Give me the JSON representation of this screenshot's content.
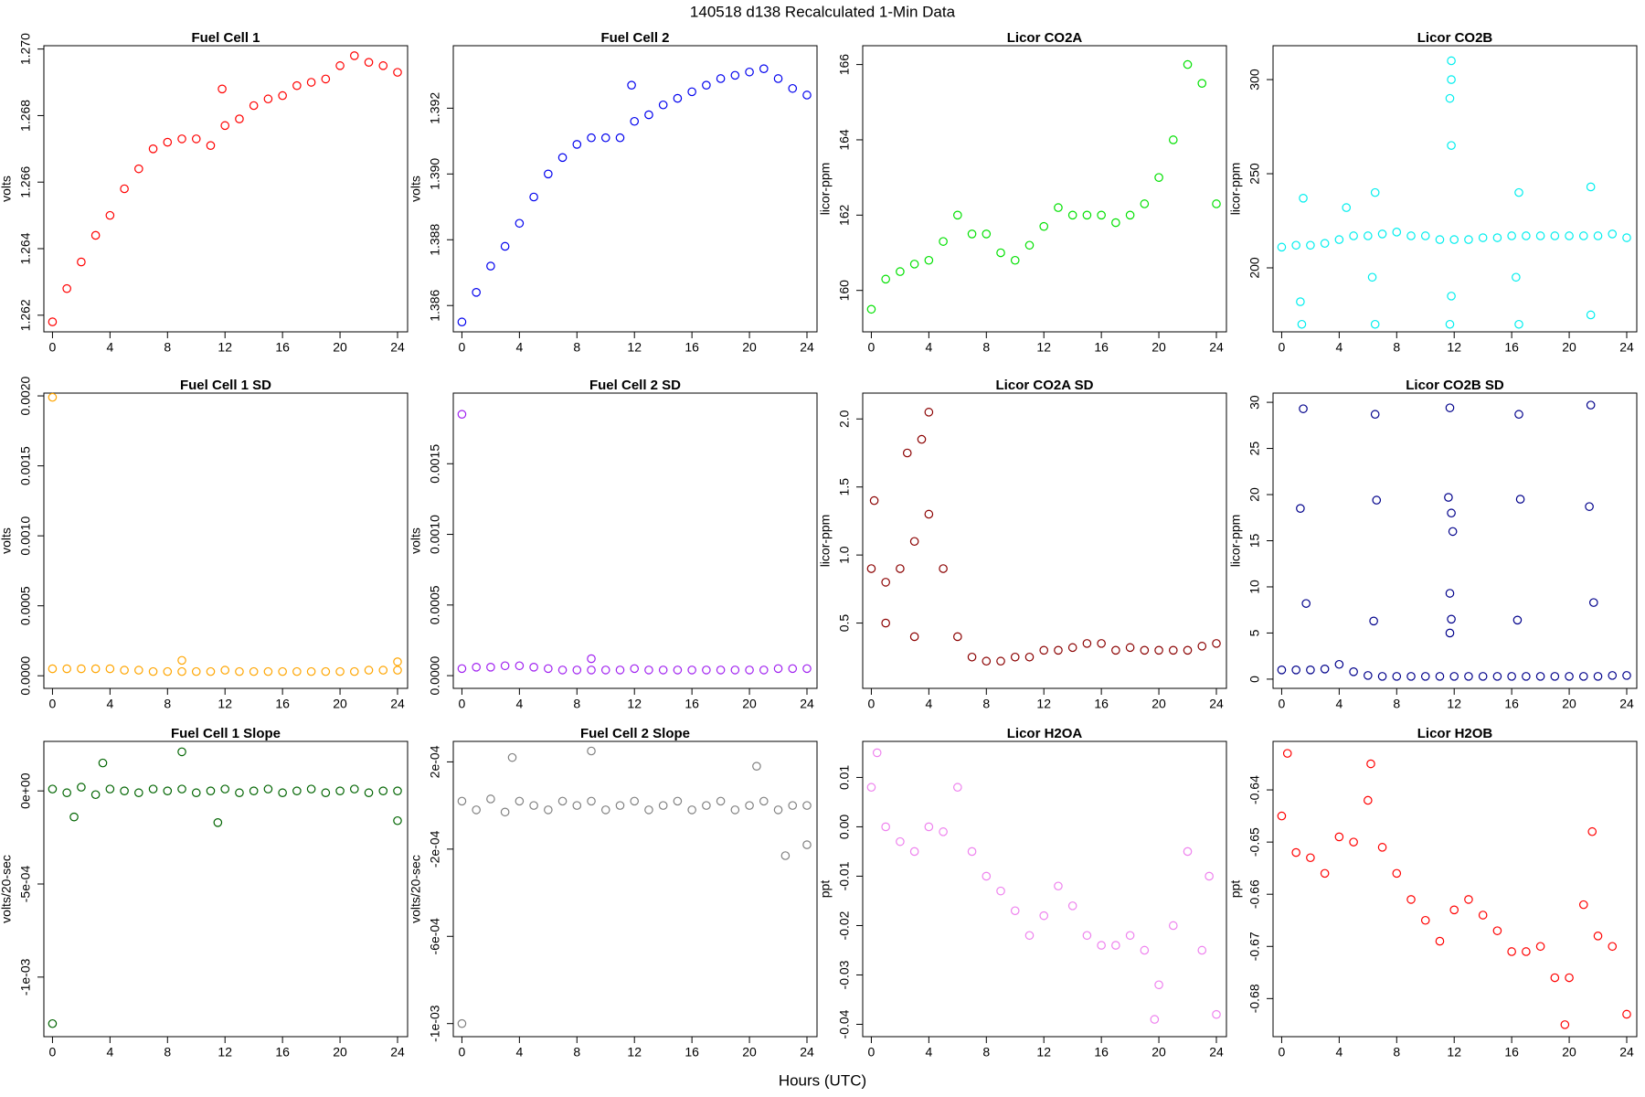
{
  "title": "140518   d138   Recalculated 1-Min Data",
  "xlabel": "Hours (UTC)",
  "chart_data": [
    {
      "type": "scatter",
      "title": "Fuel Cell 1",
      "ylabel": "volts",
      "color": "#ff0000",
      "x": [
        0,
        1,
        2,
        3,
        4,
        5,
        6,
        7,
        8,
        9,
        10,
        11,
        12,
        13,
        14,
        15,
        16,
        17,
        18,
        19,
        20,
        21,
        22,
        23,
        24,
        11.8
      ],
      "values": [
        1.2618,
        1.2628,
        1.2636,
        1.2644,
        1.265,
        1.2658,
        1.2664,
        1.267,
        1.2672,
        1.2673,
        1.2673,
        1.2671,
        1.2677,
        1.2679,
        1.2683,
        1.2685,
        1.2686,
        1.2689,
        1.269,
        1.2691,
        1.2695,
        1.2698,
        1.2696,
        1.2695,
        1.2693,
        1.2688
      ],
      "xlim": [
        -0.6,
        24.7
      ],
      "xticks": [
        0,
        4,
        8,
        12,
        16,
        20,
        24
      ],
      "ylim": [
        1.2615,
        1.2701
      ],
      "yticks": [
        1.262,
        1.264,
        1.266,
        1.268,
        {
          "value": 1.27,
          "label": "1.270"
        }
      ]
    },
    {
      "type": "scatter",
      "title": "Fuel Cell 2",
      "ylabel": "volts",
      "color": "#0000ee",
      "x": [
        0,
        1,
        2,
        3,
        4,
        5,
        6,
        7,
        8,
        9,
        10,
        11,
        12,
        13,
        14,
        15,
        16,
        17,
        18,
        19,
        20,
        21,
        22,
        23,
        24,
        11.8
      ],
      "values": [
        1.3855,
        1.3864,
        1.3872,
        1.3878,
        1.3885,
        1.3893,
        1.39,
        1.3905,
        1.3909,
        1.3911,
        1.3911,
        1.3911,
        1.3916,
        1.3918,
        1.3921,
        1.3923,
        1.3925,
        1.3927,
        1.3929,
        1.393,
        1.3931,
        1.3932,
        1.3929,
        1.3926,
        1.3924,
        1.3927
      ],
      "xlim": [
        -0.6,
        24.7
      ],
      "xticks": [
        0,
        4,
        8,
        12,
        16,
        20,
        24
      ],
      "ylim": [
        1.3852,
        1.3939
      ],
      "yticks": [
        1.386,
        1.388,
        {
          "value": 1.39,
          "label": "1.390"
        },
        1.392
      ]
    },
    {
      "type": "scatter",
      "title": "Licor CO2A",
      "ylabel": "licor-ppm",
      "color": "#00e000",
      "x": [
        0,
        1,
        2,
        3,
        4,
        5,
        6,
        7,
        8,
        9,
        10,
        11,
        12,
        13,
        14,
        15,
        16,
        17,
        18,
        19,
        20,
        21,
        22,
        23,
        24
      ],
      "values": [
        159.5,
        160.3,
        160.5,
        160.7,
        160.8,
        161.3,
        162.0,
        161.5,
        161.5,
        161.0,
        160.8,
        161.2,
        161.7,
        162.2,
        162.0,
        162.0,
        162.0,
        161.8,
        162.0,
        162.3,
        163.0,
        164.0,
        166.0,
        165.5,
        162.3
      ],
      "xlim": [
        -0.6,
        24.7
      ],
      "xticks": [
        0,
        4,
        8,
        12,
        16,
        20,
        24
      ],
      "ylim": [
        158.9,
        166.5
      ],
      "yticks": [
        160,
        162,
        164,
        166
      ]
    },
    {
      "type": "scatter",
      "title": "Licor CO2B",
      "ylabel": "licor-ppm",
      "color": "#00eeee",
      "x": [
        0,
        1,
        2,
        3,
        4,
        5,
        6,
        7,
        8,
        9,
        10,
        11,
        12,
        13,
        14,
        15,
        16,
        17,
        18,
        19,
        20,
        21,
        22,
        23,
        24,
        1.5,
        1.4,
        11.8,
        11.8,
        11.7,
        11.8,
        11.8,
        6.5,
        6.5,
        16.5,
        16.5,
        21.5,
        21.5,
        11.7,
        1.3,
        16.3,
        6.3,
        4.5
      ],
      "values": [
        211,
        212,
        212,
        213,
        215,
        217,
        217,
        218,
        219,
        217,
        217,
        215,
        215,
        215,
        216,
        216,
        217,
        217,
        217,
        217,
        217,
        217,
        217,
        218,
        216,
        237,
        170,
        310,
        300,
        290,
        265,
        185,
        240,
        170,
        240,
        170,
        243,
        175,
        170,
        182,
        195,
        195,
        232
      ],
      "xlim": [
        -0.6,
        24.7
      ],
      "xticks": [
        0,
        4,
        8,
        12,
        16,
        20,
        24
      ],
      "ylim": [
        166,
        318
      ],
      "yticks": [
        200,
        250,
        300
      ]
    },
    {
      "type": "scatter",
      "title": "Fuel Cell 1 SD",
      "ylabel": "volts",
      "color": "#ffa500",
      "x": [
        0,
        1,
        2,
        3,
        4,
        5,
        6,
        7,
        8,
        9,
        10,
        11,
        12,
        13,
        14,
        15,
        16,
        17,
        18,
        19,
        20,
        21,
        22,
        23,
        24,
        0,
        9,
        24
      ],
      "values": [
        5e-05,
        5e-05,
        5e-05,
        5e-05,
        5e-05,
        4e-05,
        4e-05,
        3e-05,
        3e-05,
        3e-05,
        3e-05,
        3e-05,
        4e-05,
        3e-05,
        3e-05,
        3e-05,
        3e-05,
        3e-05,
        3e-05,
        3e-05,
        3e-05,
        3e-05,
        4e-05,
        4e-05,
        4e-05,
        0.00199,
        0.00011,
        0.0001
      ],
      "xlim": [
        -0.6,
        24.7
      ],
      "xticks": [
        0,
        4,
        8,
        12,
        16,
        20,
        24
      ],
      "ylim": [
        -9e-05,
        0.00202
      ],
      "yticks": [
        {
          "value": 0,
          "label": "0.0000"
        },
        0.0005,
        {
          "value": 0.001,
          "label": "0.0010"
        },
        0.0015,
        {
          "value": 0.002,
          "label": "0.0020"
        }
      ]
    },
    {
      "type": "scatter",
      "title": "Fuel Cell 2 SD",
      "ylabel": "volts",
      "color": "#a020f0",
      "x": [
        0,
        1,
        2,
        3,
        4,
        5,
        6,
        7,
        8,
        9,
        10,
        11,
        12,
        13,
        14,
        15,
        16,
        17,
        18,
        19,
        20,
        21,
        22,
        23,
        24,
        0,
        9
      ],
      "values": [
        5e-05,
        6e-05,
        6e-05,
        7e-05,
        7e-05,
        6e-05,
        5e-05,
        4e-05,
        4e-05,
        4e-05,
        4e-05,
        4e-05,
        5e-05,
        4e-05,
        4e-05,
        4e-05,
        4e-05,
        4e-05,
        4e-05,
        4e-05,
        4e-05,
        4e-05,
        5e-05,
        5e-05,
        5e-05,
        0.00185,
        0.00012
      ],
      "xlim": [
        -0.6,
        24.7
      ],
      "xticks": [
        0,
        4,
        8,
        12,
        16,
        20,
        24
      ],
      "ylim": [
        -9e-05,
        0.002
      ],
      "yticks": [
        {
          "value": 0,
          "label": "0.0000"
        },
        0.0005,
        {
          "value": 0.001,
          "label": "0.0010"
        },
        0.0015
      ]
    },
    {
      "type": "scatter",
      "title": "Licor CO2A SD",
      "ylabel": "licor-ppm",
      "color": "#8b0000",
      "x": [
        0,
        1,
        2,
        3,
        4,
        5,
        6,
        7,
        8,
        9,
        10,
        11,
        12,
        13,
        14,
        15,
        16,
        17,
        18,
        19,
        20,
        21,
        22,
        23,
        24,
        4,
        3.5,
        2.5,
        0.2,
        1,
        3
      ],
      "values": [
        0.9,
        0.8,
        0.9,
        1.1,
        1.3,
        0.9,
        0.4,
        0.25,
        0.22,
        0.22,
        0.25,
        0.25,
        0.3,
        0.3,
        0.32,
        0.35,
        0.35,
        0.3,
        0.32,
        0.3,
        0.3,
        0.3,
        0.3,
        0.33,
        0.35,
        2.05,
        1.85,
        1.75,
        1.4,
        0.5,
        0.4
      ],
      "xlim": [
        -0.6,
        24.7
      ],
      "xticks": [
        0,
        4,
        8,
        12,
        16,
        20,
        24
      ],
      "ylim": [
        0.02,
        2.19
      ],
      "yticks": [
        0.5,
        {
          "value": 1,
          "label": "1.0"
        },
        1.5,
        {
          "value": 2,
          "label": "2.0"
        }
      ]
    },
    {
      "type": "scatter",
      "title": "Licor CO2B SD",
      "ylabel": "licor-ppm",
      "color": "#00008b",
      "x": [
        0,
        1,
        2,
        3,
        4,
        5,
        6,
        7,
        8,
        9,
        10,
        11,
        12,
        13,
        14,
        15,
        16,
        17,
        18,
        19,
        20,
        21,
        22,
        23,
        24,
        1.5,
        1.3,
        1.7,
        6.5,
        6.6,
        6.4,
        11.7,
        11.6,
        11.8,
        11.9,
        11.7,
        11.8,
        11.7,
        16.5,
        16.6,
        16.4,
        21.5,
        21.4,
        21.7
      ],
      "values": [
        1,
        1,
        1,
        1.1,
        1.6,
        0.8,
        0.4,
        0.3,
        0.3,
        0.3,
        0.3,
        0.3,
        0.3,
        0.3,
        0.3,
        0.3,
        0.3,
        0.3,
        0.3,
        0.3,
        0.3,
        0.3,
        0.3,
        0.4,
        0.4,
        29.3,
        18.5,
        8.2,
        28.7,
        19.4,
        6.3,
        29.4,
        19.7,
        18,
        16,
        9.3,
        6.5,
        5,
        28.7,
        19.5,
        6.4,
        29.7,
        18.7,
        8.3
      ],
      "xlim": [
        -0.6,
        24.7
      ],
      "xticks": [
        0,
        4,
        8,
        12,
        16,
        20,
        24
      ],
      "ylim": [
        -1,
        31
      ],
      "yticks": [
        0,
        5,
        10,
        15,
        20,
        25,
        30
      ]
    },
    {
      "type": "scatter",
      "title": "Fuel Cell 1 Slope",
      "ylabel": "volts/20-sec",
      "color": "#006400",
      "x": [
        0,
        1,
        2,
        3,
        4,
        5,
        6,
        7,
        8,
        9,
        10,
        11,
        12,
        13,
        14,
        15,
        16,
        17,
        18,
        19,
        20,
        21,
        22,
        23,
        24,
        0,
        9,
        3.5,
        11.5,
        24,
        1.5
      ],
      "values": [
        1e-05,
        -1e-05,
        2e-05,
        -2e-05,
        1e-05,
        0,
        -1e-05,
        1e-05,
        0,
        1e-05,
        -1e-05,
        0,
        1e-05,
        -1e-05,
        0,
        1e-05,
        -1e-05,
        0,
        1e-05,
        -1e-05,
        0,
        1e-05,
        -1e-05,
        0,
        0,
        -0.00125,
        0.00021,
        0.00015,
        -0.00017,
        -0.00016,
        -0.00014
      ],
      "xlim": [
        -0.6,
        24.7
      ],
      "xticks": [
        0,
        4,
        8,
        12,
        16,
        20,
        24
      ],
      "ylim": [
        -0.00132,
        0.000266
      ],
      "yticks": [
        {
          "value": 0,
          "label": "0e+00"
        },
        {
          "value": -0.0005,
          "label": "-5e-04"
        },
        {
          "value": -0.001,
          "label": "-1e-03"
        }
      ]
    },
    {
      "type": "scatter",
      "title": "Fuel Cell 2 Slope",
      "ylabel": "volts/20-sec",
      "color": "#808080",
      "x": [
        0,
        1,
        2,
        3,
        4,
        5,
        6,
        7,
        8,
        9,
        10,
        11,
        12,
        13,
        14,
        15,
        16,
        17,
        18,
        19,
        20,
        21,
        22,
        23,
        24,
        0,
        9,
        3.5,
        20.5,
        22.5,
        24
      ],
      "values": [
        2e-05,
        -2e-05,
        3e-05,
        -3e-05,
        2e-05,
        0,
        -2e-05,
        2e-05,
        0,
        2e-05,
        -2e-05,
        0,
        2e-05,
        -2e-05,
        0,
        2e-05,
        -2e-05,
        0,
        2e-05,
        -2e-05,
        0,
        2e-05,
        -2e-05,
        0,
        0,
        -0.001,
        0.00025,
        0.00022,
        0.00018,
        -0.00023,
        -0.00018
      ],
      "xlim": [
        -0.6,
        24.7
      ],
      "xticks": [
        0,
        4,
        8,
        12,
        16,
        20,
        24
      ],
      "ylim": [
        -0.00106,
        0.000294
      ],
      "yticks": [
        {
          "value": 0.0002,
          "label": "2e-04"
        },
        {
          "value": -0.0002,
          "label": "-2e-04"
        },
        {
          "value": -0.0006,
          "label": "-6e-04"
        },
        {
          "value": -0.001,
          "label": "-1e-03"
        }
      ]
    },
    {
      "type": "scatter",
      "title": "Licor H2OA",
      "ylabel": "ppt",
      "color": "#ee82ee",
      "x": [
        0,
        1,
        2,
        3,
        4,
        5,
        6,
        7,
        8,
        9,
        10,
        11,
        12,
        13,
        14,
        15,
        16,
        17,
        18,
        19,
        20,
        21,
        22,
        23,
        24,
        0.4,
        19.7,
        23.5
      ],
      "values": [
        0.008,
        0,
        -0.003,
        -0.005,
        0,
        -0.001,
        0.008,
        -0.005,
        -0.01,
        -0.013,
        -0.017,
        -0.022,
        -0.018,
        -0.012,
        -0.016,
        -0.022,
        -0.024,
        -0.024,
        -0.022,
        -0.025,
        -0.032,
        -0.02,
        -0.005,
        -0.025,
        -0.038,
        0.015,
        -0.039,
        -0.01
      ],
      "xlim": [
        -0.6,
        24.7
      ],
      "xticks": [
        0,
        4,
        8,
        12,
        16,
        20,
        24
      ],
      "ylim": [
        -0.0425,
        0.0173
      ],
      "yticks": [
        0.01,
        {
          "value": 0,
          "label": "0.00"
        },
        -0.01,
        -0.02,
        -0.03,
        -0.04
      ]
    },
    {
      "type": "scatter",
      "title": "Licor H2OB",
      "ylabel": "ppt",
      "color": "#ff0000",
      "x": [
        0,
        1,
        2,
        3,
        4,
        5,
        6,
        7,
        8,
        9,
        10,
        11,
        12,
        13,
        14,
        15,
        16,
        17,
        18,
        19,
        20,
        21,
        22,
        23,
        24,
        0.4,
        6.2,
        19.7,
        21.6
      ],
      "values": [
        -0.645,
        -0.652,
        -0.653,
        -0.656,
        -0.649,
        -0.65,
        -0.642,
        -0.651,
        -0.656,
        -0.661,
        -0.665,
        -0.669,
        -0.663,
        -0.661,
        -0.664,
        -0.667,
        -0.671,
        -0.671,
        -0.67,
        -0.676,
        -0.676,
        -0.662,
        -0.668,
        -0.67,
        -0.683,
        -0.633,
        -0.635,
        -0.685,
        -0.648
      ],
      "xlim": [
        -0.6,
        24.7
      ],
      "xticks": [
        0,
        4,
        8,
        12,
        16,
        20,
        24
      ],
      "ylim": [
        -0.6873,
        -0.6307
      ],
      "yticks": [
        -0.64,
        -0.65,
        -0.66,
        -0.67,
        -0.68
      ]
    }
  ]
}
